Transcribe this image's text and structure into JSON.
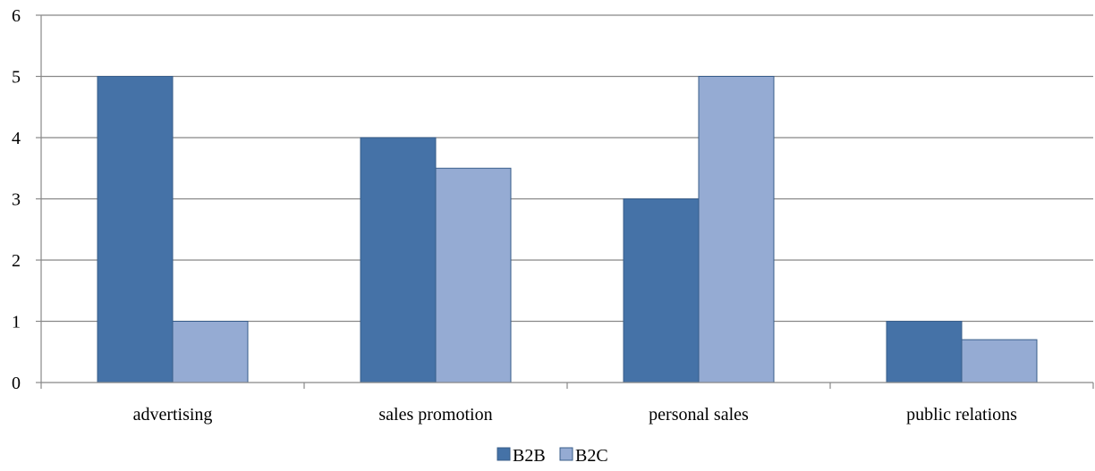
{
  "chart_data": {
    "type": "bar",
    "title": "",
    "xlabel": "",
    "ylabel": "",
    "categories": [
      "advertising",
      "sales promotion",
      "personal sales",
      "public relations"
    ],
    "series": [
      {
        "name": "B2B",
        "values": [
          5,
          4,
          3,
          1
        ],
        "color": "#4572A7"
      },
      {
        "name": "B2C",
        "values": [
          1,
          3.5,
          5,
          0.7
        ],
        "color": "#95ABD3"
      }
    ],
    "ylim": [
      0,
      6
    ],
    "yticks": [
      "0",
      "1",
      "2",
      "3",
      "4",
      "5",
      "6"
    ],
    "grid": true,
    "legend_position": "bottom"
  },
  "colors": {
    "grid": "#888888",
    "axis": "#888888",
    "bar_border": "#385D8A"
  }
}
